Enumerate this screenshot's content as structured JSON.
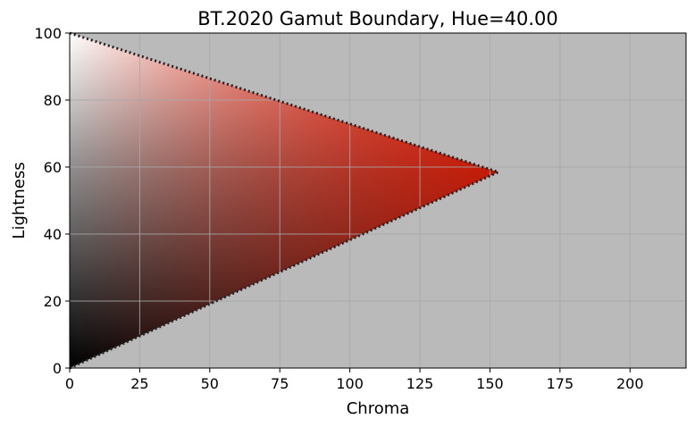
{
  "chart_data": {
    "type": "area",
    "title": "BT.2020 Gamut Boundary, Hue=40.00",
    "xlabel": "Chroma",
    "ylabel": "Lightness",
    "xlim": [
      0,
      220
    ],
    "ylim": [
      0,
      100
    ],
    "x_ticks": [
      0,
      25,
      50,
      75,
      100,
      125,
      150,
      175,
      200
    ],
    "y_ticks": [
      0,
      20,
      40,
      60,
      80,
      100
    ],
    "grid": true,
    "background_color": "#bababa",
    "grid_color": "#a8a8a8",
    "boundary_color": "#222222",
    "cusp": {
      "chroma": 153,
      "lightness": 58.5
    },
    "boundary": [
      {
        "chroma": 0,
        "lightness": 100
      },
      {
        "chroma": 153,
        "lightness": 58.5
      },
      {
        "chroma": 0,
        "lightness": 0
      }
    ],
    "colors": {
      "white": "#ffffff",
      "black": "#000000",
      "cusp_color": "#ff1a00",
      "upper_mid": "#ff8a60",
      "lower_mid": "#7a2408"
    }
  }
}
